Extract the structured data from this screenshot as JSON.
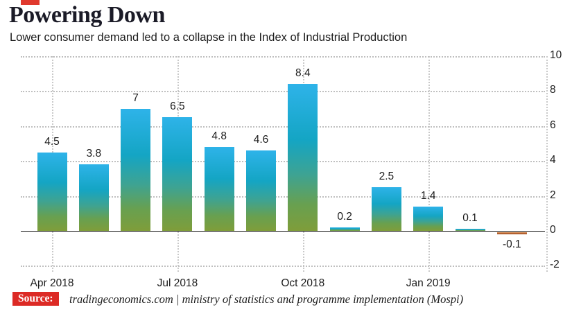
{
  "header": {
    "title": "Powering Down",
    "subtitle": "Lower consumer demand led to a collapse in the Index of Industrial Production",
    "accent_color": "#e0392e"
  },
  "source": {
    "label": "Source:",
    "text": "tradingeconomics.com | ministry of statistics and programme implementation (Mospi)",
    "label_bg": "#dc2a25"
  },
  "chart_data": {
    "type": "bar",
    "title": "Powering Down",
    "subtitle": "Lower consumer demand led to a collapse in the Index of Industrial Production",
    "values": [
      4.5,
      3.8,
      7,
      6.5,
      4.8,
      4.6,
      8.4,
      0.2,
      2.5,
      1.4,
      0.1,
      -0.1
    ],
    "value_labels": [
      "4.5",
      "3.8",
      "7",
      "6.5",
      "4.8",
      "4.6",
      "8.4",
      "0.2",
      "2.5",
      "1.4",
      "0.1",
      "-0.1"
    ],
    "xtick_labels": [
      "Apr 2018",
      "Jul 2018",
      "Oct 2018",
      "Jan 2019"
    ],
    "xtick_indices": [
      0,
      3,
      6,
      9
    ],
    "yticks": [
      10,
      8,
      6,
      4,
      2,
      0,
      -2
    ],
    "ylim": [
      -2,
      10
    ],
    "xlabel": "",
    "ylabel": "",
    "grid": "dotted",
    "legend": false,
    "bar_color_top": "#2eb3e9",
    "bar_color_bottom": "#7f9d3a",
    "negative_bar_color": "#ad5525"
  }
}
